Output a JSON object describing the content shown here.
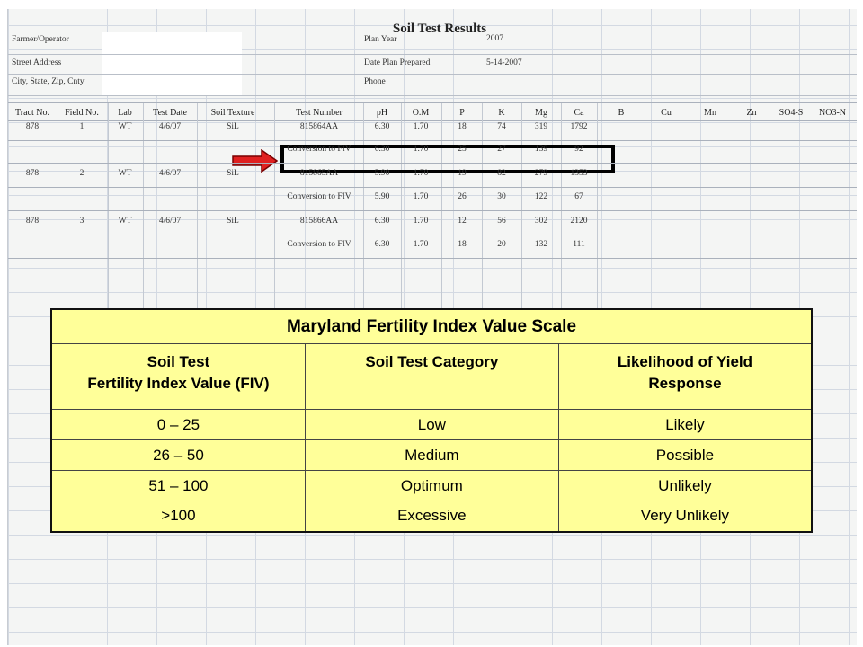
{
  "form": {
    "title": "Soil Test Results",
    "labels": {
      "farmer": "Farmer/Operator",
      "street": "Street Address",
      "city": "City, State, Zip, Cnty",
      "plan_year": "Plan Year",
      "date_prepared": "Date Plan Prepared",
      "phone": "Phone"
    },
    "values": {
      "plan_year": "2007",
      "date_prepared": "5-14-2007"
    },
    "columns": [
      "Tract No.",
      "Field No.",
      "Lab",
      "Test Date",
      "Soil Texture",
      "Test Number",
      "pH",
      "O.M",
      "P",
      "K",
      "Mg",
      "Ca",
      "B",
      "Cu",
      "Mn",
      "Zn",
      "SO4-S",
      "NO3-N"
    ],
    "rows": [
      {
        "tract": "878",
        "field": "1",
        "lab": "WT",
        "date": "4/6/07",
        "texture": "SiL",
        "number": "815864AA",
        "ph": "6.30",
        "om": "1.70",
        "p": "18",
        "k": "74",
        "mg": "319",
        "ca": "1792"
      },
      {
        "tract": "",
        "field": "",
        "lab": "",
        "date": "",
        "texture": "",
        "number": "Conversion to FIV",
        "ph": "6.30",
        "om": "1.70",
        "p": "25",
        "k": "27",
        "mg": "139",
        "ca": "92"
      },
      {
        "tract": "878",
        "field": "2",
        "lab": "WT",
        "date": "4/6/07",
        "texture": "SiL",
        "number": "815865AA",
        "ph": "5.90",
        "om": "1.70",
        "p": "19",
        "k": "82",
        "mg": "279",
        "ca": "1353"
      },
      {
        "tract": "",
        "field": "",
        "lab": "",
        "date": "",
        "texture": "",
        "number": "Conversion to FIV",
        "ph": "5.90",
        "om": "1.70",
        "p": "26",
        "k": "30",
        "mg": "122",
        "ca": "67"
      },
      {
        "tract": "878",
        "field": "3",
        "lab": "WT",
        "date": "4/6/07",
        "texture": "SiL",
        "number": "815866AA",
        "ph": "6.30",
        "om": "1.70",
        "p": "12",
        "k": "56",
        "mg": "302",
        "ca": "2120"
      },
      {
        "tract": "",
        "field": "",
        "lab": "",
        "date": "",
        "texture": "",
        "number": "Conversion to FIV",
        "ph": "6.30",
        "om": "1.70",
        "p": "18",
        "k": "20",
        "mg": "132",
        "ca": "111"
      }
    ]
  },
  "scale_table": {
    "title": "Maryland Fertility Index Value Scale",
    "headers": {
      "col1_line1": "Soil Test",
      "col1_line2": "Fertility Index Value (FIV)",
      "col2": "Soil Test Category",
      "col3_line1": "Likelihood of Yield",
      "col3_line2": "Response"
    },
    "rows": [
      {
        "range": "0 – 25",
        "category": "Low",
        "likelihood": "Likely"
      },
      {
        "range": "26 – 50",
        "category": "Medium",
        "likelihood": "Possible"
      },
      {
        "range": "51 – 100",
        "category": "Optimum",
        "likelihood": "Unlikely"
      },
      {
        "range": ">100",
        "category": "Excessive",
        "likelihood": "Very Unlikely"
      }
    ],
    "background_color": "#ffff99"
  },
  "annotations": {
    "arrow_color": "#e02020",
    "highlight_color": "#000000"
  }
}
